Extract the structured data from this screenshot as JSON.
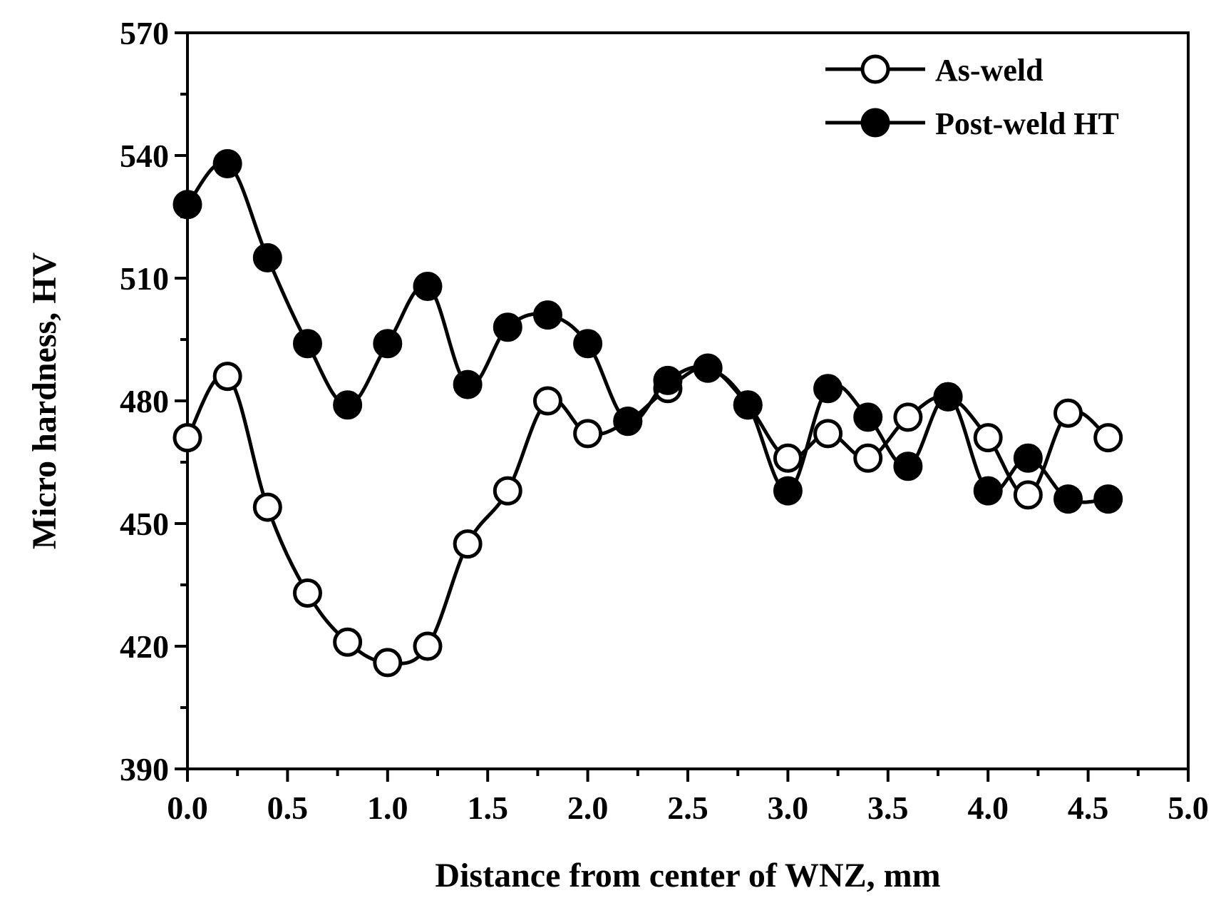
{
  "chart_data": {
    "type": "line",
    "title": "",
    "xlabel": "Distance from center of WNZ, mm",
    "ylabel": "Micro hardness, HV",
    "xlim": [
      0,
      5.0
    ],
    "ylim": [
      390,
      570
    ],
    "xticks": [
      "0.0",
      "0.5",
      "1.0",
      "1.5",
      "2.0",
      "2.5",
      "3.0",
      "3.5",
      "4.0",
      "4.5",
      "5.0"
    ],
    "yticks": [
      "390",
      "420",
      "450",
      "480",
      "510",
      "540",
      "570"
    ],
    "legend_position": "top-right",
    "x": [
      0.0,
      0.2,
      0.4,
      0.6,
      0.8,
      1.0,
      1.2,
      1.4,
      1.6,
      1.8,
      2.0,
      2.2,
      2.4,
      2.6,
      2.8,
      3.0,
      3.2,
      3.4,
      3.6,
      3.8,
      4.0,
      4.2,
      4.4,
      4.6
    ],
    "series": [
      {
        "name": "As-weld",
        "marker": "open-circle",
        "values": [
          471,
          486,
          454,
          433,
          421,
          416,
          420,
          445,
          458,
          480,
          472,
          475,
          483,
          488,
          479,
          466,
          472,
          466,
          476,
          481,
          471,
          457,
          477,
          471
        ]
      },
      {
        "name": "Post-weld HT",
        "marker": "filled-circle",
        "values": [
          528,
          538,
          515,
          494,
          479,
          494,
          508,
          484,
          498,
          501,
          494,
          475,
          485,
          488,
          479,
          458,
          483,
          476,
          464,
          481,
          458,
          466,
          456,
          456
        ]
      }
    ]
  }
}
